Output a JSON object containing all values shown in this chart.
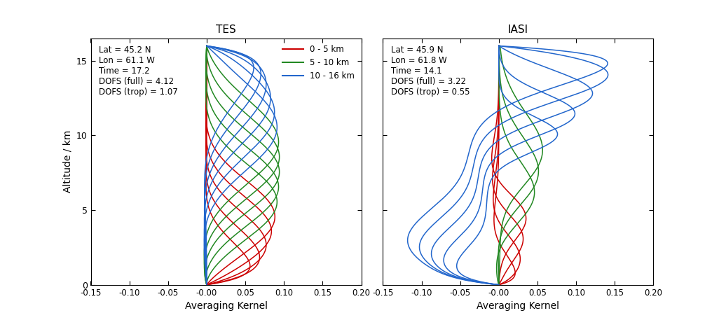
{
  "tes_title": "TES",
  "iasi_title": "IASI",
  "xlabel": "Averaging Kernel",
  "ylabel": "Altitude / km",
  "xlim": [
    -0.15,
    0.2
  ],
  "ylim": [
    0,
    16.5
  ],
  "xticks": [
    -0.15,
    -0.1,
    -0.05,
    -0.0,
    0.05,
    0.1,
    0.15,
    0.2
  ],
  "yticks": [
    0,
    5,
    10,
    15
  ],
  "tes_info": "Lat = 45.2 N\nLon = 61.1 W\nTime = 17.2\nDOFS (full) = 4.12\nDOFS (trop) = 1.07",
  "iasi_info": "Lat = 45.9 N\nLon = 61.8 W\nTime = 14.1\nDOFS (full) = 3.22\nDOFS (trop) = 0.55",
  "color_red": "#cc0000",
  "color_green": "#228822",
  "color_blue": "#2266cc",
  "legend_labels": [
    "0 - 5 km",
    "5 - 10 km",
    "10 - 16 km"
  ],
  "lw": 1.1,
  "n_tes_levels": 16,
  "n_iasi_levels": 12
}
